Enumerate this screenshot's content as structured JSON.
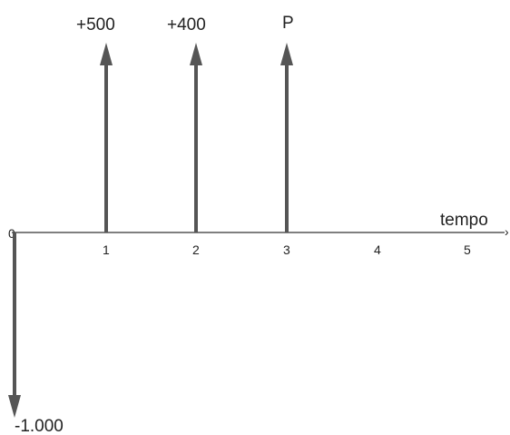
{
  "axis": {
    "label": "tempo",
    "ticks": [
      "0",
      "1",
      "2",
      "3",
      "4",
      "5"
    ]
  },
  "cash_flows": [
    {
      "label": "+500",
      "time": 1,
      "direction": "up"
    },
    {
      "label": "+400",
      "time": 2,
      "direction": "up"
    },
    {
      "label": "P",
      "time": 3,
      "direction": "up"
    },
    {
      "label": "-1.000",
      "time": 0,
      "direction": "down"
    }
  ],
  "colors": {
    "arrow": "#555555",
    "axis": "#333333",
    "text": "#222222"
  }
}
